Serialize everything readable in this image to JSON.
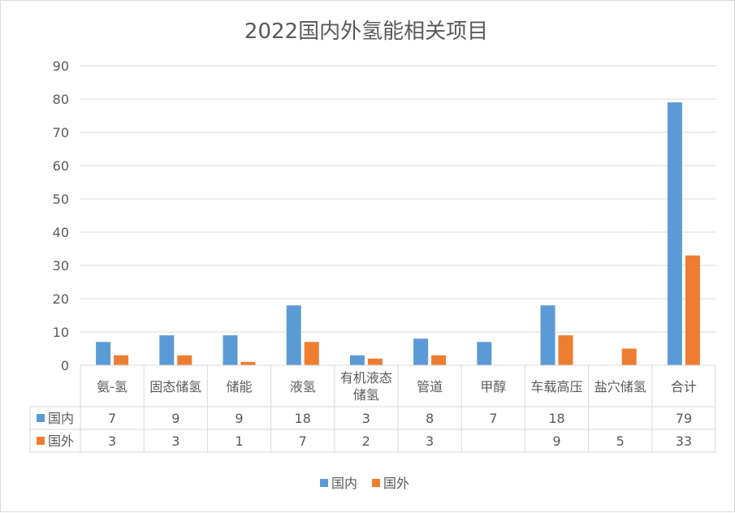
{
  "chart_data": {
    "type": "bar",
    "title": "2022国内外氢能相关项目",
    "categories": [
      "氨-氢",
      "固态储氢",
      "储能",
      "液氢",
      "有机液态\n储氢",
      "管道",
      "甲醇",
      "车载高压",
      "盐穴储氢",
      "合计"
    ],
    "series": [
      {
        "name": "国内",
        "color": "#5b9bd5",
        "values": [
          7,
          9,
          9,
          18,
          3,
          8,
          7,
          18,
          null,
          79
        ]
      },
      {
        "name": "国外",
        "color": "#ed7d31",
        "values": [
          3,
          3,
          1,
          7,
          2,
          3,
          null,
          9,
          5,
          33
        ]
      }
    ],
    "ylim": [
      0,
      90
    ],
    "yticks": [
      0,
      10,
      20,
      30,
      40,
      50,
      60,
      70,
      80,
      90
    ],
    "grid": true,
    "legend": "bottom",
    "data_table": true
  }
}
